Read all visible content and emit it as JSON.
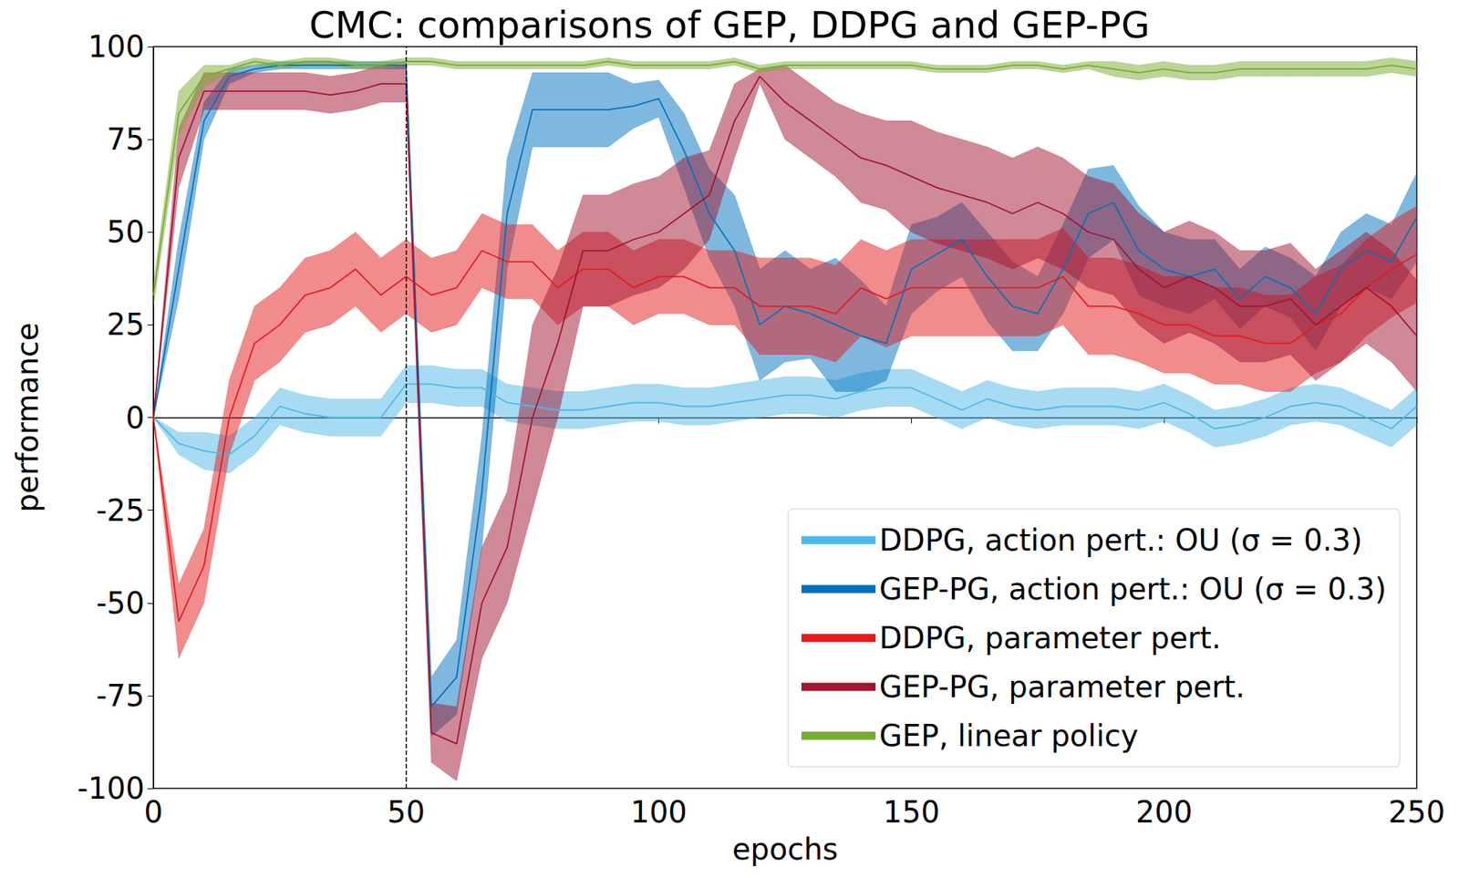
{
  "chart_data": {
    "type": "line",
    "title": "CMC: comparisons of GEP, DDPG and GEP-PG",
    "x_label": "epochs",
    "y_label": "performance",
    "xlim": [
      0,
      250
    ],
    "xticks": [
      0,
      50,
      100,
      150,
      200,
      250
    ],
    "ylim": [
      -100,
      100
    ],
    "yticks": [
      -100,
      -75,
      -50,
      -25,
      0,
      25,
      50,
      75,
      100
    ],
    "grid": false,
    "legend": "lower right",
    "vline": 50,
    "x": [
      0,
      5,
      10,
      15,
      20,
      25,
      30,
      35,
      40,
      45,
      50,
      55,
      60,
      65,
      70,
      75,
      80,
      85,
      90,
      95,
      100,
      105,
      110,
      115,
      120,
      125,
      130,
      135,
      140,
      145,
      150,
      155,
      160,
      165,
      170,
      175,
      180,
      185,
      190,
      195,
      200,
      205,
      210,
      215,
      220,
      225,
      230,
      235,
      240,
      245,
      250
    ],
    "series": [
      {
        "name": "DDPG, action pert.: OU (σ = 0.3)",
        "color": "#4db8e8",
        "values": [
          0,
          -7,
          -9,
          -10,
          -5,
          3,
          1,
          0,
          0,
          0,
          9,
          9,
          8,
          8,
          4,
          3,
          2,
          2,
          3,
          4,
          4,
          3,
          3,
          4,
          5,
          6,
          6,
          5,
          7,
          8,
          8,
          5,
          2,
          5,
          3,
          2,
          3,
          3,
          3,
          2,
          4,
          1,
          -3,
          -2,
          0,
          3,
          4,
          3,
          0,
          -3,
          3
        ],
        "error": [
          0,
          3,
          5,
          5,
          5,
          5,
          5,
          5,
          5,
          5,
          5,
          5,
          5,
          5,
          5,
          5,
          5,
          5,
          5,
          5,
          5,
          5,
          5,
          5,
          5,
          5,
          5,
          5,
          5,
          5,
          5,
          5,
          5,
          5,
          5,
          5,
          5,
          5,
          5,
          5,
          5,
          5,
          5,
          5,
          5,
          5,
          5,
          5,
          5,
          5,
          5
        ]
      },
      {
        "name": "GEP-PG, action pert.: OU (σ = 0.3)",
        "color": "#0072bd",
        "values": [
          0,
          40,
          80,
          92,
          94,
          95,
          95,
          95,
          95,
          95,
          95,
          -78,
          -70,
          -20,
          55,
          83,
          83,
          83,
          83,
          84,
          86,
          72,
          55,
          45,
          25,
          30,
          28,
          25,
          22,
          20,
          40,
          44,
          48,
          38,
          30,
          28,
          40,
          55,
          58,
          45,
          40,
          38,
          40,
          32,
          38,
          35,
          28,
          40,
          45,
          42,
          54
        ],
        "error": [
          0,
          8,
          5,
          2,
          1,
          1,
          1,
          1,
          1,
          1,
          1,
          8,
          10,
          15,
          15,
          10,
          10,
          10,
          10,
          6,
          5,
          10,
          12,
          15,
          15,
          15,
          12,
          18,
          15,
          10,
          12,
          10,
          10,
          12,
          12,
          10,
          12,
          12,
          10,
          12,
          10,
          10,
          8,
          8,
          8,
          8,
          10,
          10,
          10,
          10,
          12
        ]
      },
      {
        "name": "DDPG, parameter pert.",
        "color": "#e41a1c",
        "values": [
          0,
          -55,
          -40,
          0,
          20,
          25,
          33,
          35,
          40,
          33,
          38,
          33,
          35,
          45,
          42,
          42,
          35,
          40,
          40,
          35,
          38,
          38,
          35,
          35,
          30,
          30,
          30,
          28,
          35,
          32,
          35,
          35,
          35,
          35,
          35,
          35,
          38,
          30,
          30,
          28,
          25,
          25,
          22,
          22,
          20,
          20,
          25,
          28,
          35,
          40,
          44
        ],
        "error": [
          0,
          10,
          10,
          10,
          10,
          10,
          10,
          10,
          10,
          10,
          10,
          10,
          10,
          10,
          10,
          10,
          10,
          10,
          10,
          10,
          10,
          10,
          10,
          10,
          13,
          13,
          13,
          13,
          13,
          13,
          13,
          13,
          13,
          13,
          13,
          13,
          13,
          13,
          13,
          13,
          13,
          13,
          13,
          13,
          13,
          13,
          13,
          13,
          13,
          13,
          13
        ]
      },
      {
        "name": "GEP-PG, parameter pert.",
        "color": "#a2142f",
        "values": [
          0,
          70,
          88,
          88,
          88,
          88,
          88,
          87,
          88,
          90,
          90,
          -85,
          -88,
          -50,
          -35,
          0,
          20,
          45,
          45,
          48,
          50,
          55,
          60,
          80,
          92,
          85,
          80,
          75,
          70,
          68,
          65,
          62,
          60,
          58,
          55,
          58,
          55,
          50,
          48,
          40,
          35,
          38,
          35,
          30,
          30,
          32,
          25,
          30,
          35,
          30,
          22
        ],
        "error": [
          0,
          8,
          5,
          5,
          5,
          5,
          5,
          5,
          5,
          5,
          5,
          8,
          10,
          15,
          15,
          25,
          20,
          15,
          15,
          15,
          15,
          15,
          12,
          10,
          2,
          10,
          10,
          10,
          12,
          12,
          15,
          15,
          15,
          15,
          15,
          15,
          15,
          15,
          15,
          15,
          15,
          15,
          15,
          15,
          15,
          15,
          15,
          15,
          15,
          15,
          15
        ]
      },
      {
        "name": "GEP, linear policy",
        "color": "#77ac30",
        "values": [
          33,
          82,
          92,
          94,
          96,
          95,
          96,
          96,
          95,
          95,
          96,
          96,
          95,
          95,
          95,
          95,
          95,
          95,
          96,
          95,
          95,
          95,
          95,
          96,
          94,
          95,
          95,
          95,
          95,
          95,
          95,
          94,
          94,
          94,
          95,
          95,
          94,
          95,
          94,
          93,
          94,
          93,
          93,
          94,
          94,
          94,
          94,
          94,
          94,
          95,
          94
        ],
        "error": [
          3,
          6,
          3,
          1,
          1,
          1,
          1,
          1,
          1,
          1,
          1,
          1,
          1,
          1,
          1,
          1,
          1,
          1,
          1,
          1,
          1,
          1,
          1,
          1,
          1,
          1,
          1,
          1,
          1,
          1,
          1,
          1,
          1,
          1,
          1,
          1,
          1,
          1,
          2,
          2,
          2,
          2,
          2,
          2,
          2,
          2,
          2,
          2,
          2,
          2,
          2
        ]
      }
    ]
  }
}
